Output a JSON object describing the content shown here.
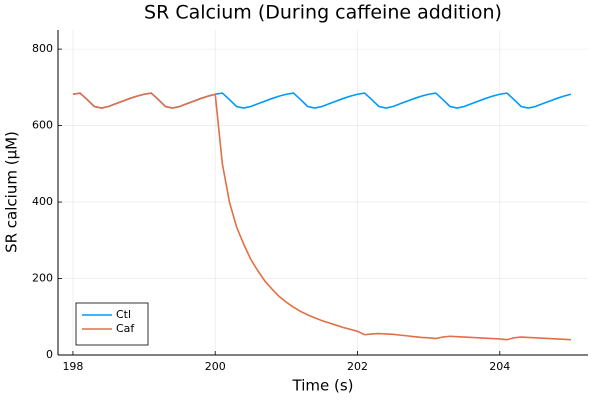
{
  "chart_data": {
    "type": "line",
    "title": "SR Calcium (During caffeine addition)",
    "xlabel": "Time (s)",
    "ylabel": "SR calcium (μM)",
    "x": [
      198.0,
      198.1,
      198.2,
      198.3,
      198.4,
      198.5,
      198.6,
      198.7,
      198.8,
      198.9,
      199.0,
      199.1,
      199.2,
      199.3,
      199.4,
      199.5,
      199.6,
      199.7,
      199.8,
      199.9,
      200.0,
      200.1,
      200.2,
      200.3,
      200.4,
      200.5,
      200.6,
      200.7,
      200.8,
      200.9,
      201.0,
      201.1,
      201.2,
      201.3,
      201.4,
      201.5,
      201.6,
      201.7,
      201.8,
      201.9,
      202.0,
      202.1,
      202.2,
      202.3,
      202.4,
      202.5,
      202.6,
      202.7,
      202.8,
      202.9,
      203.0,
      203.1,
      203.2,
      203.3,
      203.4,
      203.5,
      203.6,
      203.7,
      203.8,
      203.9,
      204.0,
      204.1,
      204.2,
      204.3,
      204.4,
      204.5,
      204.6,
      204.7,
      204.8,
      204.9,
      205.0
    ],
    "series": [
      {
        "name": "Ctl",
        "color": "#009af9",
        "values": [
          682,
          685,
          668,
          650,
          646,
          650,
          657,
          664,
          671,
          677,
          682,
          685,
          668,
          650,
          646,
          650,
          657,
          664,
          671,
          677,
          682,
          685,
          668,
          650,
          646,
          650,
          657,
          664,
          671,
          677,
          682,
          685,
          668,
          650,
          646,
          650,
          657,
          664,
          671,
          677,
          682,
          685,
          668,
          650,
          646,
          650,
          657,
          664,
          671,
          677,
          682,
          685,
          668,
          650,
          646,
          650,
          657,
          664,
          671,
          677,
          682,
          685,
          668,
          650,
          646,
          650,
          657,
          664,
          671,
          677,
          682
        ]
      },
      {
        "name": "Caf",
        "color": "#e26f46",
        "values": [
          682,
          685,
          668,
          650,
          646,
          650,
          657,
          664,
          671,
          677,
          682,
          685,
          668,
          650,
          646,
          650,
          657,
          664,
          671,
          677,
          682,
          500,
          400,
          335,
          290,
          250,
          220,
          193,
          172,
          153,
          138,
          125,
          114,
          105,
          97,
          90,
          84,
          78,
          72,
          67,
          62,
          53,
          55,
          56,
          55,
          54,
          52,
          50,
          48,
          46,
          45,
          43,
          47,
          49,
          48,
          47,
          46,
          45,
          44,
          43,
          42,
          40,
          45,
          47,
          46,
          45,
          44,
          43,
          42,
          41,
          40
        ]
      }
    ],
    "xlim": [
      197.79,
      205.24
    ],
    "ylim": [
      0,
      850
    ],
    "xticks": [
      198,
      200,
      202,
      204
    ],
    "yticks": [
      0,
      200,
      400,
      600,
      800
    ],
    "grid": true,
    "legend": "bottom-left"
  }
}
